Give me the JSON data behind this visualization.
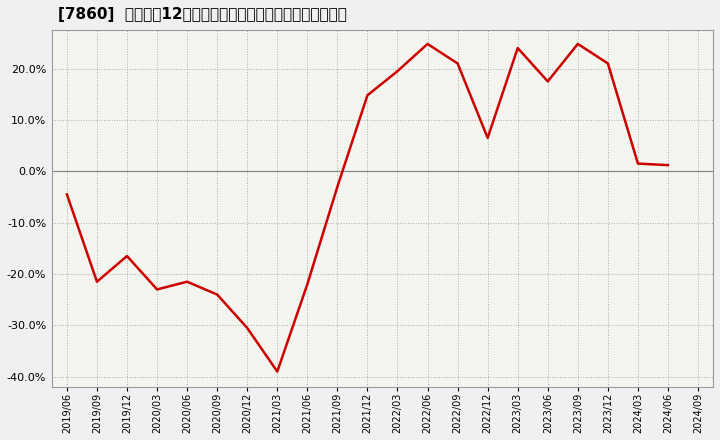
{
  "title": "[7860]  売上高の12か月移動合計の対前年同期増減率の推移",
  "line_color": "#cc0000",
  "background_color": "#f0f0f0",
  "plot_bg_color": "#f5f5f0",
  "grid_color": "#aaaaaa",
  "zero_line_color": "#888888",
  "ylim": [
    -0.42,
    0.275
  ],
  "yticks": [
    -0.4,
    -0.3,
    -0.2,
    -0.1,
    0.0,
    0.1,
    0.2
  ],
  "dates": [
    "2019/06",
    "2019/09",
    "2019/12",
    "2020/03",
    "2020/06",
    "2020/09",
    "2020/12",
    "2021/03",
    "2021/06",
    "2021/09",
    "2021/12",
    "2022/03",
    "2022/06",
    "2022/09",
    "2022/12",
    "2023/03",
    "2023/06",
    "2023/09",
    "2023/12",
    "2024/03",
    "2024/06",
    "2024/09"
  ],
  "values": [
    -0.045,
    -0.215,
    -0.165,
    -0.23,
    -0.215,
    -0.24,
    -0.305,
    -0.39,
    -0.22,
    -0.03,
    0.148,
    0.195,
    0.248,
    0.21,
    0.065,
    0.24,
    0.175,
    0.248,
    0.21,
    0.015,
    0.012,
    null
  ],
  "title_fontsize": 11,
  "tick_fontsize": 8,
  "line_width": 1.8
}
